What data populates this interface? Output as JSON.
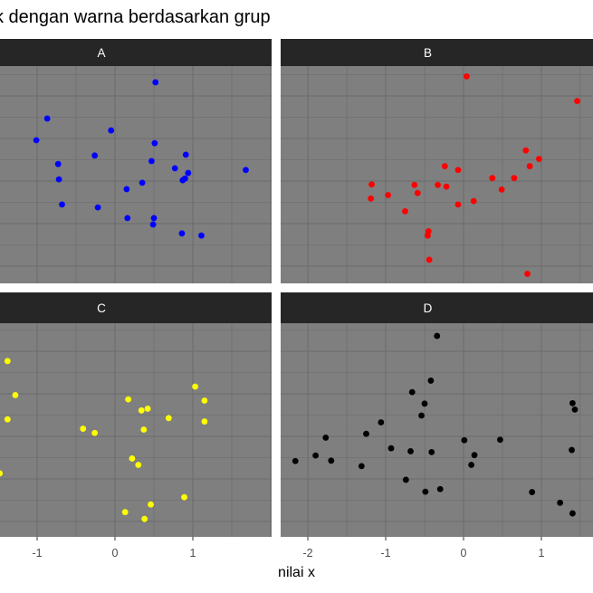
{
  "chart_data": {
    "type": "scatter",
    "title": "k dengan warna berdasarkan grup",
    "xlabel": "nilai x",
    "ylabel": "",
    "grid": true,
    "legend": "none",
    "facets": [
      {
        "label": "A",
        "color": "#0000ff",
        "x": [
          0.52,
          -0.87,
          -0.05,
          -1.01,
          0.51,
          -0.26,
          0.91,
          -0.73,
          0.47,
          0.77,
          1.68,
          0.94,
          0.9,
          0.87,
          -0.72,
          0.35,
          0.15,
          -0.68,
          -0.22,
          0.16,
          0.5,
          0.49,
          0.86,
          1.11
        ],
        "y": [
          2.32,
          1.47,
          1.19,
          0.96,
          0.89,
          0.6,
          0.62,
          0.4,
          0.47,
          0.3,
          0.26,
          0.19,
          0.06,
          0.02,
          0.04,
          -0.04,
          -0.19,
          -0.55,
          -0.62,
          -0.87,
          -0.87,
          -1.02,
          -1.23,
          -1.28
        ]
      },
      {
        "label": "B",
        "color": "#ff0000",
        "x": [
          0.04,
          1.46,
          0.8,
          0.97,
          0.85,
          -0.24,
          -0.07,
          0.37,
          0.65,
          -1.18,
          -0.63,
          -0.33,
          -0.22,
          -0.59,
          0.49,
          -1.19,
          -0.97,
          0.13,
          -0.07,
          -0.75,
          -0.45,
          -0.46,
          -0.44,
          0.82
        ],
        "y": [
          2.46,
          1.88,
          0.72,
          0.52,
          0.35,
          0.35,
          0.26,
          0.07,
          0.07,
          -0.08,
          -0.09,
          -0.09,
          -0.13,
          -0.28,
          -0.2,
          -0.41,
          -0.33,
          -0.47,
          -0.55,
          -0.71,
          -1.18,
          -1.28,
          -1.85,
          -2.18
        ]
      },
      {
        "label": "C",
        "color": "#ffff00",
        "x": [
          -1.38,
          -1.28,
          -1.38,
          -1.48,
          1.03,
          1.15,
          1.15,
          0.17,
          0.34,
          0.42,
          0.69,
          0.37,
          -0.41,
          -0.26,
          0.22,
          0.3,
          0.89,
          0.46,
          0.13,
          0.38
        ],
        "y": [
          1.77,
          0.97,
          0.4,
          -0.87,
          1.17,
          0.84,
          0.35,
          0.87,
          0.61,
          0.65,
          0.43,
          0.16,
          0.18,
          0.08,
          -0.52,
          -0.67,
          -1.43,
          -1.6,
          -1.78,
          -1.94
        ]
      },
      {
        "label": "D",
        "color": "#000000",
        "x": [
          -0.34,
          -0.42,
          -0.66,
          -0.5,
          -0.54,
          1.4,
          1.43,
          -1.06,
          -1.25,
          -1.77,
          0.01,
          0.47,
          -0.93,
          -0.68,
          -0.41,
          1.39,
          0.14,
          -1.9,
          -2.16,
          -1.7,
          -1.31,
          0.1,
          -0.74,
          -0.3,
          -0.49,
          0.88,
          1.24,
          1.4
        ],
        "y": [
          2.36,
          1.31,
          1.04,
          0.77,
          0.49,
          0.78,
          0.63,
          0.33,
          0.06,
          -0.03,
          -0.09,
          -0.08,
          -0.28,
          -0.35,
          -0.37,
          -0.32,
          -0.44,
          -0.45,
          -0.58,
          -0.57,
          -0.7,
          -0.67,
          -1.02,
          -1.24,
          -1.3,
          -1.31,
          -1.56,
          -1.81
        ]
      }
    ],
    "x_ticks_left": [
      "-1",
      "0",
      "1"
    ],
    "x_tick_values_left": [
      -1,
      0,
      1
    ],
    "x_ticks_right": [
      "-2",
      "-1",
      "0",
      "1"
    ],
    "x_tick_values_right": [
      -2,
      -1,
      0,
      1
    ],
    "panel_bg": "#7f7f7f",
    "grid_color": "#6b6b6b",
    "strip_bg": "#262626"
  }
}
